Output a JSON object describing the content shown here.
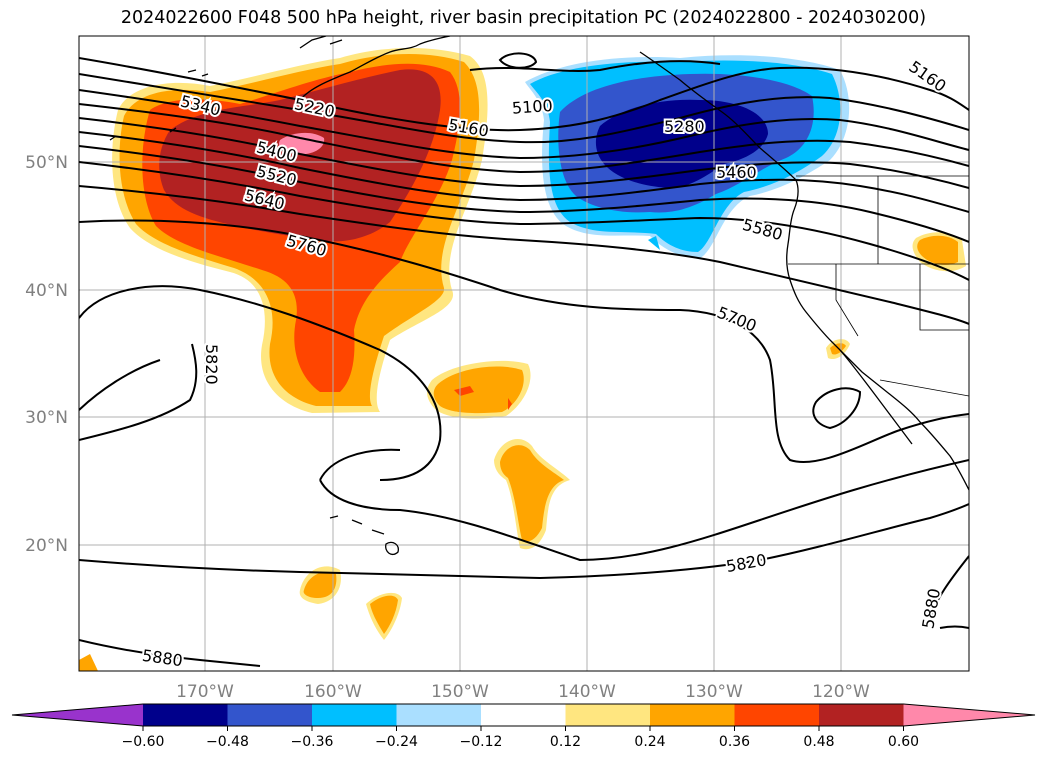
{
  "title": "2024022600 F048 500 hPa height, river basin precipitation PC (2024022800 - 2024030200)",
  "lat_labels": [
    "50°N",
    "40°N",
    "30°N",
    "20°N"
  ],
  "lon_labels": [
    "170°W",
    "160°W",
    "150°W",
    "140°W",
    "130°W",
    "120°W"
  ],
  "contour_labels": [
    "5100",
    "5160",
    "5160",
    "5220",
    "5280",
    "5340",
    "5400",
    "5460",
    "5520",
    "5580",
    "5640",
    "5700",
    "5760",
    "5820",
    "5820",
    "5880",
    "5880"
  ],
  "colorbar": {
    "ticks": [
      "−0.60",
      "−0.48",
      "−0.36",
      "−0.24",
      "−0.12",
      "0.12",
      "0.24",
      "0.36",
      "0.48",
      "0.60"
    ],
    "colors": [
      "#9933cc",
      "#00008b",
      "#3355cc",
      "#00bfff",
      "#aadfff",
      "#ffffff",
      "#ffe680",
      "#ffa500",
      "#ff4500",
      "#b22222",
      "#ff88aa"
    ]
  },
  "colors": {
    "neg_strong": "#00008b",
    "neg_mid": "#3355cc",
    "neg_light": "#00bfff",
    "neg_pale": "#aadfff",
    "pos_pale": "#ffe680",
    "pos_light": "#ffa500",
    "pos_mid": "#ff4500",
    "pos_strong": "#b22222",
    "pos_max": "#ff88aa",
    "grid": "#b0b0b0",
    "contour": "#000000"
  }
}
